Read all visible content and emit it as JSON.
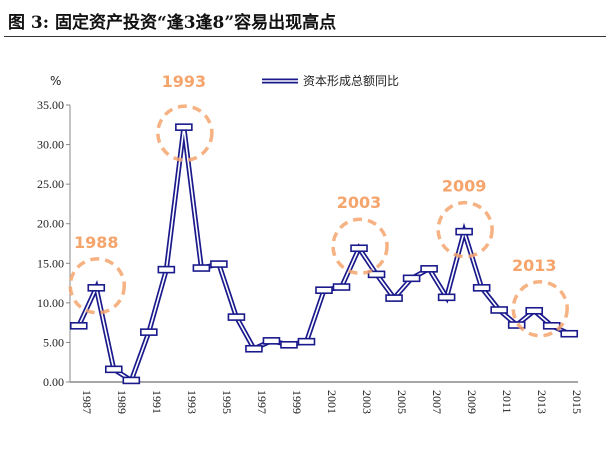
{
  "title": "图 3: 固定资产投资“逢3逢8”容易出现高点",
  "chart_data": {
    "type": "line",
    "title": "图 3: 固定资产投资“逢3逢8”容易出现高点",
    "ylabel": "%",
    "ylim": [
      0,
      35
    ],
    "yticks": [
      "0.00",
      "5.00",
      "10.00",
      "15.00",
      "20.00",
      "25.00",
      "30.00",
      "35.00"
    ],
    "x": [
      1987,
      1988,
      1989,
      1990,
      1991,
      1992,
      1993,
      1994,
      1995,
      1996,
      1997,
      1998,
      1999,
      2000,
      2001,
      2002,
      2003,
      2004,
      2005,
      2006,
      2007,
      2008,
      2009,
      2010,
      2011,
      2012,
      2013,
      2014,
      2015
    ],
    "xticks": [
      "1987",
      "1989",
      "1991",
      "1993",
      "1995",
      "1997",
      "1999",
      "2001",
      "2003",
      "2005",
      "2007",
      "2009",
      "2011",
      "2013",
      "2015"
    ],
    "series": [
      {
        "name": "资本形成总额同比",
        "color": "#1a1a8c",
        "values": [
          7.1,
          11.9,
          1.6,
          0.2,
          6.3,
          14.2,
          32.2,
          14.4,
          14.9,
          8.2,
          4.2,
          5.2,
          4.7,
          5.1,
          11.6,
          12.0,
          16.9,
          13.6,
          10.6,
          13.1,
          14.3,
          10.7,
          19.0,
          11.9,
          9.1,
          7.2,
          9.0,
          7.1,
          6.1
        ]
      }
    ],
    "legend": "top-right",
    "annotations": [
      {
        "label": "1988",
        "x": 1988,
        "y": 11.9
      },
      {
        "label": "1993",
        "x": 1993,
        "y": 32.2
      },
      {
        "label": "2003",
        "x": 2003,
        "y": 16.9
      },
      {
        "label": "2009",
        "x": 2009,
        "y": 19.0
      },
      {
        "label": "2013",
        "x": 2013,
        "y": 9.0
      }
    ],
    "annotation_color": "#f5a46c"
  }
}
